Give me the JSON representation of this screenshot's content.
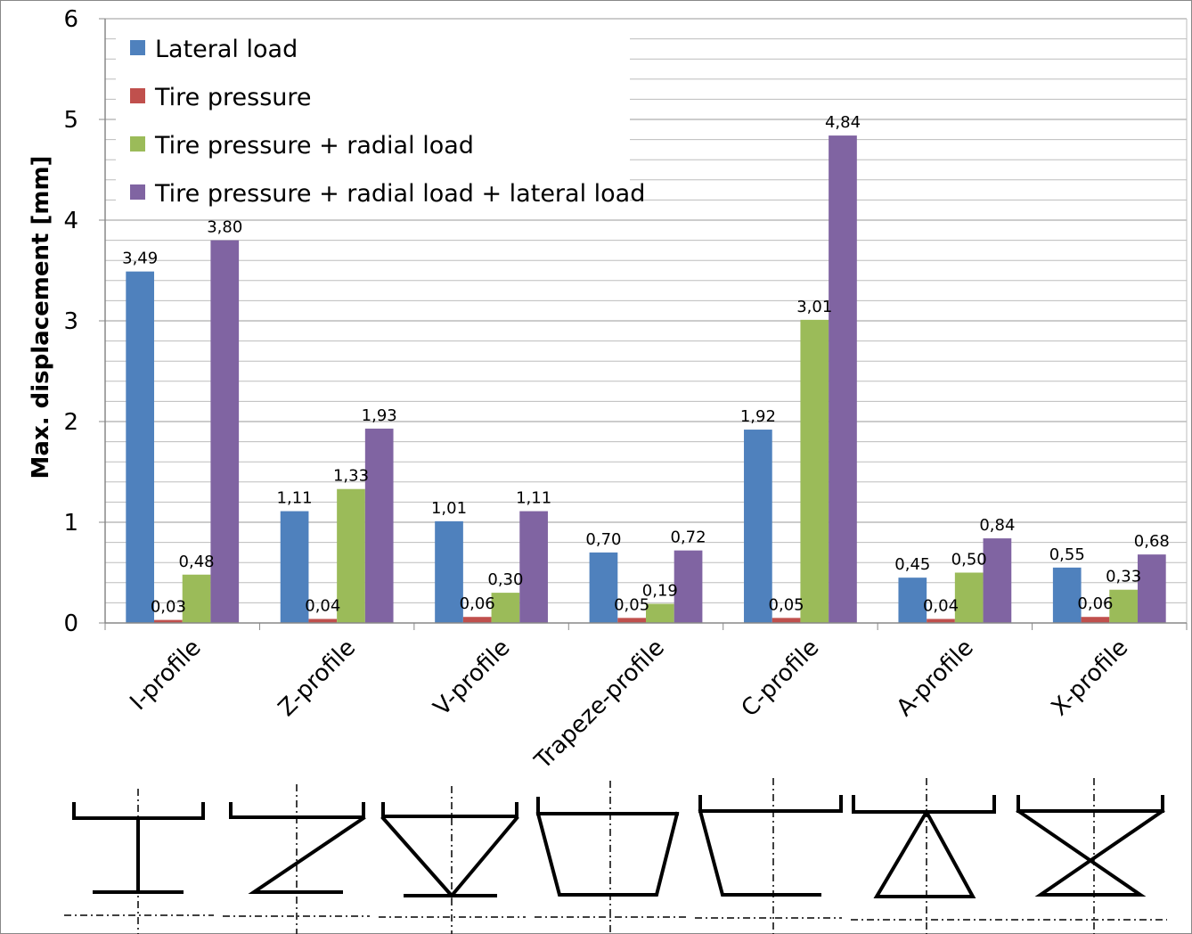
{
  "chart_data": {
    "type": "bar",
    "title": "",
    "xlabel": "",
    "ylabel": "Max. displacement [mm]",
    "ylim": [
      0,
      6
    ],
    "yticks": [
      "0",
      "1",
      "2",
      "3",
      "4",
      "5",
      "6"
    ],
    "grid": true,
    "legend_position": "top-left",
    "categories": [
      "I-profile",
      "Z-profile",
      "V-profile",
      "Trapeze-profile",
      "C-profile",
      "A-profile",
      "X-profile"
    ],
    "series": [
      {
        "name": "Lateral load",
        "color": "#4F81BD",
        "values": [
          3.49,
          1.11,
          1.01,
          0.7,
          1.92,
          0.45,
          0.55
        ],
        "labels": [
          "3,49",
          "1,11",
          "1,01",
          "0,70",
          "1,92",
          "0,45",
          "0,55"
        ]
      },
      {
        "name": "Tire pressure",
        "color": "#C0504D",
        "values": [
          0.03,
          0.04,
          0.06,
          0.05,
          0.05,
          0.04,
          0.06
        ],
        "labels": [
          "0,03",
          "0,04",
          "0,06",
          "0,05",
          "0,05",
          "0,04",
          "0,06"
        ]
      },
      {
        "name": "Tire pressure + radial load",
        "color": "#9BBB59",
        "values": [
          0.48,
          1.33,
          0.3,
          0.19,
          3.01,
          0.5,
          0.33
        ],
        "labels": [
          "0,48",
          "1,33",
          "0,30",
          "0,19",
          "3,01",
          "0,50",
          "0,33"
        ]
      },
      {
        "name": "Tire pressure + radial load + lateral load",
        "color": "#8064A2",
        "values": [
          3.8,
          1.93,
          1.11,
          0.72,
          4.84,
          0.84,
          0.68
        ],
        "labels": [
          "3,80",
          "1,93",
          "1,11",
          "0,72",
          "4,84",
          "0,84",
          "0,68"
        ]
      }
    ]
  }
}
